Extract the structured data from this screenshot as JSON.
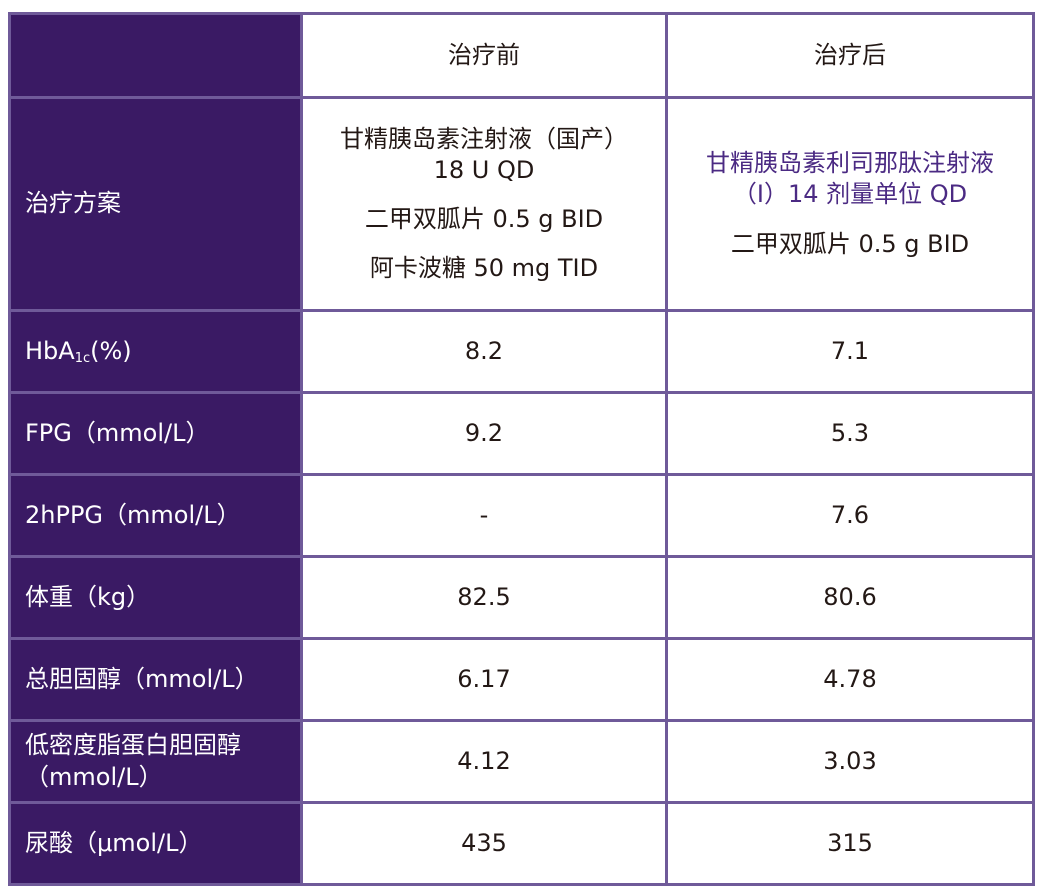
{
  "header": {
    "col_before": "治疗前",
    "col_after": "治疗后"
  },
  "rows": {
    "regimen": {
      "label": "治疗方案",
      "before": [
        "甘精胰岛素注射液（国产）",
        "18 U QD",
        "二甲双胍片 0.5 g BID",
        "阿卡波糖 50 mg TID"
      ],
      "after": [
        "甘精胰岛素利司那肽注射液",
        "（I）14 剂量单位 QD",
        "二甲双胍片 0.5 g BID"
      ]
    },
    "hba1c": {
      "label_main": "HbA",
      "label_sub": "1c",
      "label_tail": "(%)",
      "before": "8.2",
      "after": "7.1"
    },
    "fpg": {
      "label": "FPG（mmol/L）",
      "before": "9.2",
      "after": "5.3"
    },
    "hppg": {
      "label": "2hPPG（mmol/L）",
      "before": "-",
      "after": "7.6"
    },
    "weight": {
      "label": "体重（kg）",
      "before": "82.5",
      "after": "80.6"
    },
    "tc": {
      "label": "总胆固醇（mmol/L）",
      "before": "6.17",
      "after": "4.78"
    },
    "ldl": {
      "label_line1": "低密度脂蛋白胆固醇",
      "label_line2": "（mmol/L）",
      "before": "4.12",
      "after": "3.03"
    },
    "ua": {
      "label": "尿酸（μmol/L）",
      "before": "435",
      "after": "315"
    }
  },
  "colors": {
    "label_bg": "#3a1a64",
    "border": "#6f5a99",
    "accent_text": "#4b2a83"
  }
}
